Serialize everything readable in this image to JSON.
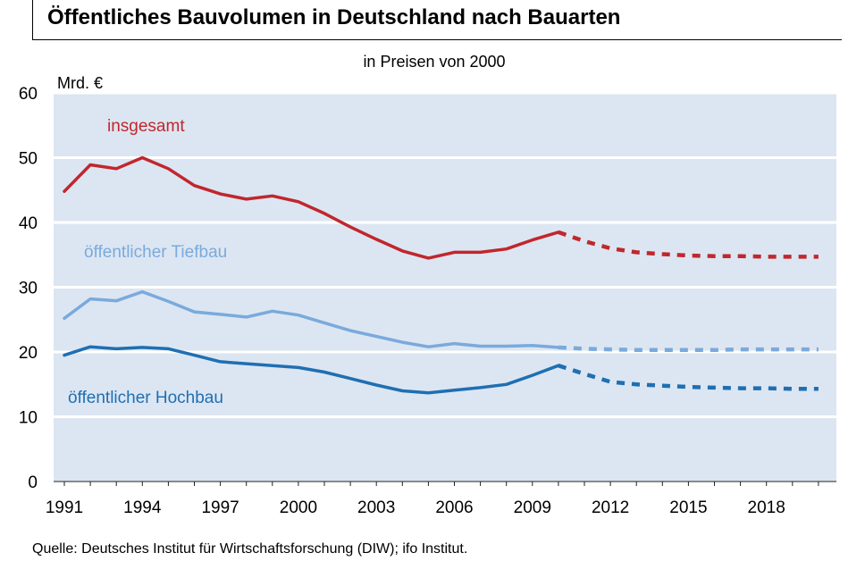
{
  "title": "Öffentliches Bauvolumen in Deutschland nach Bauarten",
  "source": "Quelle: Deutsches Institut für Wirtschaftsforschung (DIW); ifo Institut.",
  "chart_data": {
    "type": "line",
    "title": "Öffentliches Bauvolumen in Deutschland nach Bauarten",
    "subtitle": "in Preisen von 2000",
    "ylabel": "Mrd. €",
    "xlabel": "",
    "ylim": [
      0,
      60
    ],
    "xlim": [
      1991,
      2020
    ],
    "yticks": [
      "0",
      "10",
      "20",
      "30",
      "40",
      "50",
      "60"
    ],
    "xticks": [
      "1991",
      "1994",
      "1997",
      "2000",
      "2003",
      "2006",
      "2009",
      "2012",
      "2015",
      "2018"
    ],
    "grid": true,
    "legend": "inline labels",
    "forecast_from": 2010,
    "x": [
      1991,
      1992,
      1993,
      1994,
      1995,
      1996,
      1997,
      1998,
      1999,
      2000,
      2001,
      2002,
      2003,
      2004,
      2005,
      2006,
      2007,
      2008,
      2009,
      2010,
      2011,
      2012,
      2013,
      2014,
      2015,
      2016,
      2017,
      2018,
      2019,
      2020
    ],
    "series": [
      {
        "name": "insgesamt",
        "color": "#c0272d",
        "values": [
          44.8,
          48.9,
          48.3,
          50.0,
          48.3,
          45.7,
          44.4,
          43.6,
          44.1,
          43.2,
          41.4,
          39.3,
          37.4,
          35.6,
          34.5,
          35.4,
          35.4,
          35.9,
          37.3,
          38.5,
          37.1,
          36.0,
          35.4,
          35.1,
          34.9,
          34.8,
          34.8,
          34.7,
          34.7,
          34.7
        ]
      },
      {
        "name": "öffentlicher Tiefbau",
        "color": "#7aaadc",
        "values": [
          25.2,
          28.2,
          27.9,
          29.3,
          27.8,
          26.2,
          25.8,
          25.4,
          26.3,
          25.7,
          24.5,
          23.3,
          22.4,
          21.5,
          20.8,
          21.3,
          20.9,
          20.9,
          21.0,
          20.7,
          20.5,
          20.4,
          20.3,
          20.3,
          20.3,
          20.3,
          20.4,
          20.4,
          20.4,
          20.4
        ]
      },
      {
        "name": "öffentlicher Hochbau",
        "color": "#1f6fb2",
        "values": [
          19.5,
          20.8,
          20.5,
          20.7,
          20.5,
          19.5,
          18.5,
          18.2,
          17.9,
          17.6,
          16.9,
          15.9,
          14.9,
          14.0,
          13.7,
          14.1,
          14.5,
          15.0,
          16.4,
          17.9,
          16.6,
          15.4,
          15.0,
          14.8,
          14.6,
          14.5,
          14.4,
          14.4,
          14.3,
          14.3
        ]
      }
    ]
  }
}
